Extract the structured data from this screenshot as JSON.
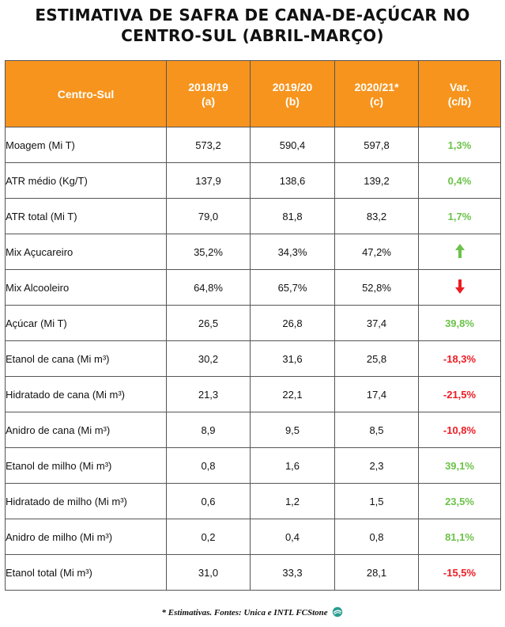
{
  "title": {
    "line1": "ESTIMATIVA DE SAFRA DE CANA-DE-AÇÚCAR NO",
    "line2": "CENTRO-SUL (ABRIL-MARÇO)"
  },
  "colors": {
    "header_bg": "#f7941d",
    "positive": "#6cc24a",
    "negative": "#ed1c24"
  },
  "table": {
    "headers": [
      {
        "line1": "Centro-Sul",
        "line2": ""
      },
      {
        "line1": "2018/19",
        "line2": "(a)"
      },
      {
        "line1": "2019/20",
        "line2": "(b)"
      },
      {
        "line1": "2020/21*",
        "line2": "(c)"
      },
      {
        "line1": "Var.",
        "line2": "(c/b)"
      }
    ],
    "rows": [
      {
        "label": "Moagem (Mi T)",
        "a": "573,2",
        "b": "590,4",
        "c": "597,8",
        "var": "1,3%",
        "trend": "positive"
      },
      {
        "label": "ATR médio (Kg/T)",
        "a": "137,9",
        "b": "138,6",
        "c": "139,2",
        "var": "0,4%",
        "trend": "positive"
      },
      {
        "label": "ATR total (Mi T)",
        "a": "79,0",
        "b": "81,8",
        "c": "83,2",
        "var": "1,7%",
        "trend": "positive"
      },
      {
        "label": "Mix Açucareiro",
        "a": "35,2%",
        "b": "34,3%",
        "c": "47,2%",
        "var": "",
        "trend": "up-arrow-icon"
      },
      {
        "label": "Mix Alcooleiro",
        "a": "64,8%",
        "b": "65,7%",
        "c": "52,8%",
        "var": "",
        "trend": "down-arrow-icon"
      },
      {
        "label": "Açúcar (Mi T)",
        "a": "26,5",
        "b": "26,8",
        "c": "37,4",
        "var": "39,8%",
        "trend": "positive"
      },
      {
        "label": "Etanol de cana (Mi m³)",
        "a": "30,2",
        "b": "31,6",
        "c": "25,8",
        "var": "-18,3%",
        "trend": "negative"
      },
      {
        "label": "Hidratado de cana (Mi m³)",
        "a": "21,3",
        "b": "22,1",
        "c": "17,4",
        "var": "-21,5%",
        "trend": "negative"
      },
      {
        "label": "Anidro de cana (Mi m³)",
        "a": "8,9",
        "b": "9,5",
        "c": "8,5",
        "var": "-10,8%",
        "trend": "negative"
      },
      {
        "label": "Etanol de milho (Mi m³)",
        "a": "0,8",
        "b": "1,6",
        "c": "2,3",
        "var": "39,1%",
        "trend": "positive"
      },
      {
        "label": "Hidratado de milho (Mi m³)",
        "a": "0,6",
        "b": "1,2",
        "c": "1,5",
        "var": "23,5%",
        "trend": "positive"
      },
      {
        "label": "Anidro de milho (Mi m³)",
        "a": "0,2",
        "b": "0,4",
        "c": "0,8",
        "var": "81,1%",
        "trend": "positive"
      },
      {
        "label": "Etanol total (Mi m³)",
        "a": "31,0",
        "b": "33,3",
        "c": "28,1",
        "var": "-15,5%",
        "trend": "negative"
      }
    ]
  },
  "footer": {
    "text": "* Estimativas. Fontes: Unica e INTL FCStone",
    "logo_icon": "fcstone-logo-icon"
  }
}
